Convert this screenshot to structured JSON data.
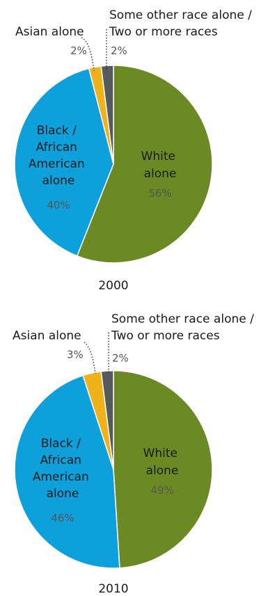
{
  "chart_data": [
    {
      "type": "pie",
      "title": "2000",
      "slices": [
        {
          "lines": [
            "White",
            "alone"
          ],
          "value": 56,
          "pct_label": "56%",
          "color": "#6b8a23"
        },
        {
          "lines": [
            "Black /",
            "African",
            "American",
            "alone"
          ],
          "value": 40,
          "pct_label": "40%",
          "color": "#0ea0db"
        },
        {
          "lines": [
            "Asian alone"
          ],
          "value": 2,
          "pct_label": "2%",
          "color": "#f0b21a"
        },
        {
          "lines": [
            "Some other race alone /",
            "Two or more races"
          ],
          "value": 2,
          "pct_label": "2%",
          "color": "#555a5a"
        }
      ]
    },
    {
      "type": "pie",
      "title": "2010",
      "slices": [
        {
          "lines": [
            "White",
            "alone"
          ],
          "value": 49,
          "pct_label": "49%",
          "color": "#6b8a23"
        },
        {
          "lines": [
            "Black /",
            "African",
            "American",
            "alone"
          ],
          "value": 46,
          "pct_label": "46%",
          "color": "#0ea0db"
        },
        {
          "lines": [
            "Asian alone"
          ],
          "value": 3,
          "pct_label": "3%",
          "color": "#f0b21a"
        },
        {
          "lines": [
            "Some other race alone /",
            "Two or more races"
          ],
          "value": 2,
          "pct_label": "2%",
          "color": "#555a5a"
        }
      ]
    }
  ]
}
